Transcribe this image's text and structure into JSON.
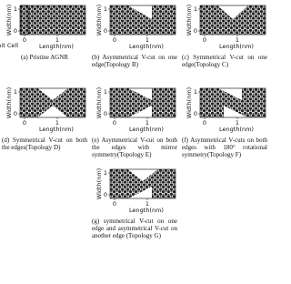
{
  "panels": [
    {
      "caption": "(a) Pristine AGNR",
      "ylabel": "Width(nm)",
      "xlabel": "Length(nm)",
      "yticks": [
        0,
        1
      ],
      "xticks": [
        0,
        1
      ],
      "annotation": "Unit Cell"
    },
    {
      "caption": "(b) Asymmetrical V-cut on one edge(Topology B)",
      "ylabel": "Width(nm)",
      "xlabel": "Length(nm)",
      "yticks": [
        0,
        1
      ],
      "xticks": [
        0,
        1
      ]
    },
    {
      "caption": "(c) Symmetrical V-cut on one edge(Topology C)",
      "ylabel": "Width(nm)",
      "xlabel": "Length(nm)",
      "yticks": [
        0,
        1
      ],
      "xticks": [
        0,
        1
      ]
    },
    {
      "caption": "(d) Symmetrical V-cut on both the edges(Topology D)",
      "ylabel": "Width(nm)",
      "xlabel": "Length(nm)",
      "yticks": [
        0,
        1
      ],
      "xticks": [
        0,
        1
      ]
    },
    {
      "caption": "(e) Asymmetrical V-cut on both the edges with mirror symmetry(Topology E)",
      "ylabel": "Width(nm)",
      "xlabel": "Length(nm)",
      "yticks": [
        0,
        1
      ],
      "xticks": [
        0,
        1
      ]
    },
    {
      "caption": "(f) Asymmetrical V-cuts on both edges with 180° rotational symmetry(Topology F)",
      "ylabel": "Width(nm)",
      "xlabel": "Length(nm)",
      "yticks": [
        0,
        1
      ],
      "xticks": [
        0,
        1
      ]
    },
    {
      "caption": "(g) symmetrical V-cut on one edge and asymmetrical V-cut on another edge (Topology G)",
      "ylabel": "Width(nm)",
      "xlabel": "Length(nm)",
      "yticks": [
        0,
        1
      ],
      "xticks": [
        0,
        1
      ]
    }
  ]
}
